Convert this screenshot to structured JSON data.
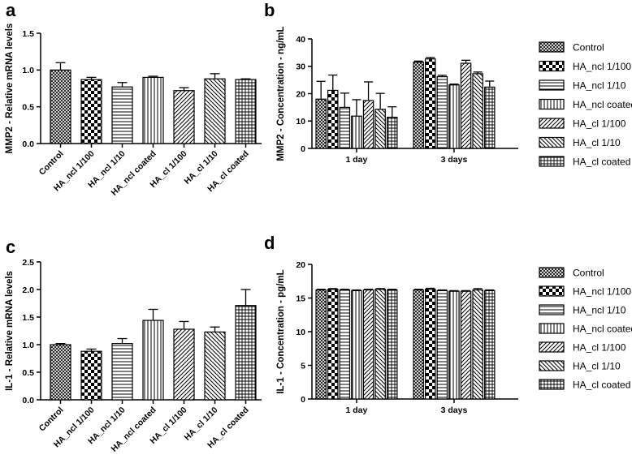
{
  "figure_letters": [
    "a",
    "b",
    "c",
    "d"
  ],
  "legend_groups": [
    "Control",
    "HA_ncl 1/100",
    "HA_ncl 1/10",
    "HA_ncl coated",
    "HA_cl 1/100",
    "HA_cl 1/10",
    "HA_cl coated"
  ],
  "chart_data": [
    {
      "letter": "a",
      "type": "bar",
      "ylabel": "MMP2 - Relative mRNA levels",
      "ylim": [
        0,
        1.5
      ],
      "yticks": [
        "0.0",
        "0.5",
        "1.0",
        "1.5"
      ],
      "categories": [
        "Control",
        "HA_ncl 1/100",
        "HA_ncl 1/10",
        "HA_ncl coated",
        "HA_cl 1/100",
        "HA_cl 1/10",
        "HA_cl coated"
      ],
      "values": [
        1.0,
        0.87,
        0.77,
        0.9,
        0.72,
        0.88,
        0.87
      ],
      "errors": [
        0.1,
        0.03,
        0.06,
        0.015,
        0.04,
        0.07,
        0.01
      ]
    },
    {
      "letter": "b",
      "type": "bar",
      "ylabel": "MMP2 - Concentration - ng/mL",
      "ylim": [
        0,
        40
      ],
      "yticks": [
        "0",
        "10",
        "20",
        "30",
        "40"
      ],
      "categories": [
        "1 day",
        "3 days"
      ],
      "series": [
        {
          "name": "Control",
          "values": [
            18,
            31.5
          ],
          "errors": [
            6.5,
            0.4
          ]
        },
        {
          "name": "HA_ncl 1/100",
          "values": [
            21.2,
            32.7
          ],
          "errors": [
            5.6,
            0.5
          ]
        },
        {
          "name": "HA_ncl 1/10",
          "values": [
            15,
            26.2
          ],
          "errors": [
            5.2,
            0.5
          ]
        },
        {
          "name": "HA_ncl coated",
          "values": [
            11.8,
            23.2
          ],
          "errors": [
            6,
            0.3
          ]
        },
        {
          "name": "HA_cl 1/100",
          "values": [
            17.5,
            31.1
          ],
          "errors": [
            6.8,
            1.1
          ]
        },
        {
          "name": "HA_cl 1/10",
          "values": [
            14.3,
            27.3
          ],
          "errors": [
            5.8,
            0.6
          ]
        },
        {
          "name": "HA_cl coated",
          "values": [
            11.4,
            22.4
          ],
          "errors": [
            3.8,
            2.2
          ]
        }
      ]
    },
    {
      "letter": "c",
      "type": "bar",
      "ylabel": "IL-1 - Relative mRNA levels",
      "ylim": [
        0,
        2.5
      ],
      "yticks": [
        "0.0",
        "0.5",
        "1.0",
        "1.5",
        "2.0",
        "2.5"
      ],
      "categories": [
        "Control",
        "HA_ncl 1/100",
        "HA_ncl 1/10",
        "HA_ncl coated",
        "HA_cl 1/100",
        "HA_cl 1/10",
        "HA_cl coated"
      ],
      "values": [
        1.0,
        0.88,
        1.02,
        1.44,
        1.28,
        1.23,
        1.71
      ],
      "errors": [
        0.02,
        0.04,
        0.09,
        0.2,
        0.14,
        0.09,
        0.29
      ]
    },
    {
      "letter": "d",
      "type": "bar",
      "ylabel": "IL-1 - Concentration - pg/mL",
      "ylim": [
        0,
        20
      ],
      "yticks": [
        "0",
        "5",
        "10",
        "15",
        "20"
      ],
      "categories": [
        "1 day",
        "3 days"
      ],
      "series": [
        {
          "name": "Control",
          "values": [
            16.2,
            16.2
          ],
          "errors": [
            0.1,
            0.1
          ]
        },
        {
          "name": "HA_ncl 1/100",
          "values": [
            16.3,
            16.3
          ],
          "errors": [
            0.1,
            0.15
          ]
        },
        {
          "name": "HA_ncl 1/10",
          "values": [
            16.2,
            16.1
          ],
          "errors": [
            0.1,
            0.1
          ]
        },
        {
          "name": "HA_ncl coated",
          "values": [
            16.1,
            16.0
          ],
          "errors": [
            0.1,
            0.1
          ]
        },
        {
          "name": "HA_cl 1/100",
          "values": [
            16.2,
            16.0
          ],
          "errors": [
            0.1,
            0.1
          ]
        },
        {
          "name": "HA_cl 1/10",
          "values": [
            16.3,
            16.2
          ],
          "errors": [
            0.1,
            0.2
          ]
        },
        {
          "name": "HA_cl coated",
          "values": [
            16.2,
            16.1
          ],
          "errors": [
            0.1,
            0.1
          ]
        }
      ]
    }
  ]
}
